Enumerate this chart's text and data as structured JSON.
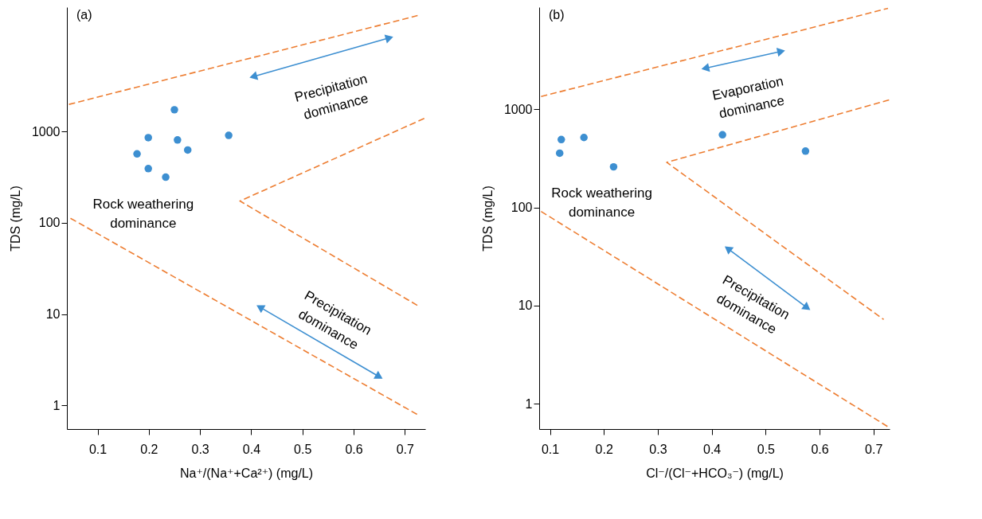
{
  "chart_data": [
    {
      "type": "scatter",
      "xlabel": "Na⁺/(Na⁺+Ca²⁺) (mg/L)",
      "ylabel": "TDS (mg/L)",
      "log": "y",
      "xlim": [
        0.04,
        0.74
      ],
      "ylim": [
        0.55,
        23000
      ],
      "xticks": [
        0.1,
        0.2,
        0.3,
        0.4,
        0.5,
        0.6,
        0.7
      ],
      "yticks": [
        1,
        10,
        100,
        1000
      ],
      "annotations": [
        "(a)",
        "Precipitation dominance",
        "Rock weathering dominance",
        "Precipitation dominance"
      ],
      "series": [
        {
          "type": "scatter",
          "marker": "circle",
          "color": "#3d8fd1",
          "x": [
            0.25,
            0.199,
            0.256,
            0.356,
            0.177,
            0.276,
            0.199,
            0.233
          ],
          "values": [
            1730,
            855,
            807,
            907,
            568,
            627,
            392,
            316
          ]
        },
        {
          "type": "line",
          "color": "#ed7d31",
          "line_style": "dashed",
          "x": [
            0.044,
            0.725
          ],
          "values": [
            1980,
            18600
          ]
        },
        {
          "type": "line",
          "color": "#ed7d31",
          "line_style": "dashed",
          "x": [
            0.738,
            0.378,
            0.725
          ],
          "values": [
            1390,
            173,
            12.4
          ]
        },
        {
          "type": "line",
          "color": "#ed7d31",
          "line_style": "dashed",
          "x": [
            0.047,
            0.725
          ],
          "values": [
            112,
            0.79
          ]
        }
      ]
    },
    {
      "type": "scatter",
      "xlabel": "Cl⁻/(Cl⁻+HCO₃⁻) (mg/L)",
      "ylabel": "TDS (mg/L)",
      "log": "y",
      "xlim": [
        0.08,
        0.73
      ],
      "ylim": [
        0.55,
        11000
      ],
      "xticks": [
        0.1,
        0.2,
        0.3,
        0.4,
        0.5,
        0.6,
        0.7
      ],
      "yticks": [
        1,
        10,
        100,
        1000
      ],
      "annotations": [
        "(b)",
        "Evaporation dominance",
        "Rock weathering dominance",
        "Precipitation dominance"
      ],
      "series": [
        {
          "type": "scatter",
          "marker": "circle",
          "color": "#3d8fd1",
          "x": [
            0.121,
            0.118,
            0.163,
            0.218,
            0.42,
            0.574
          ],
          "values": [
            492,
            357,
            516,
            259,
            550,
            375
          ]
        },
        {
          "type": "line",
          "color": "#ed7d31",
          "line_style": "dashed",
          "x": [
            0.0835,
            0.727
          ],
          "values": [
            1350,
            10700
          ]
        },
        {
          "type": "line",
          "color": "#ed7d31",
          "line_style": "dashed",
          "x": [
            0.729,
            0.3165,
            0.719
          ],
          "values": [
            1245,
            288,
            7.2
          ]
        },
        {
          "type": "line",
          "color": "#ed7d31",
          "line_style": "dashed",
          "x": [
            0.0835,
            0.727
          ],
          "values": [
            91,
            0.58
          ]
        }
      ]
    }
  ]
}
